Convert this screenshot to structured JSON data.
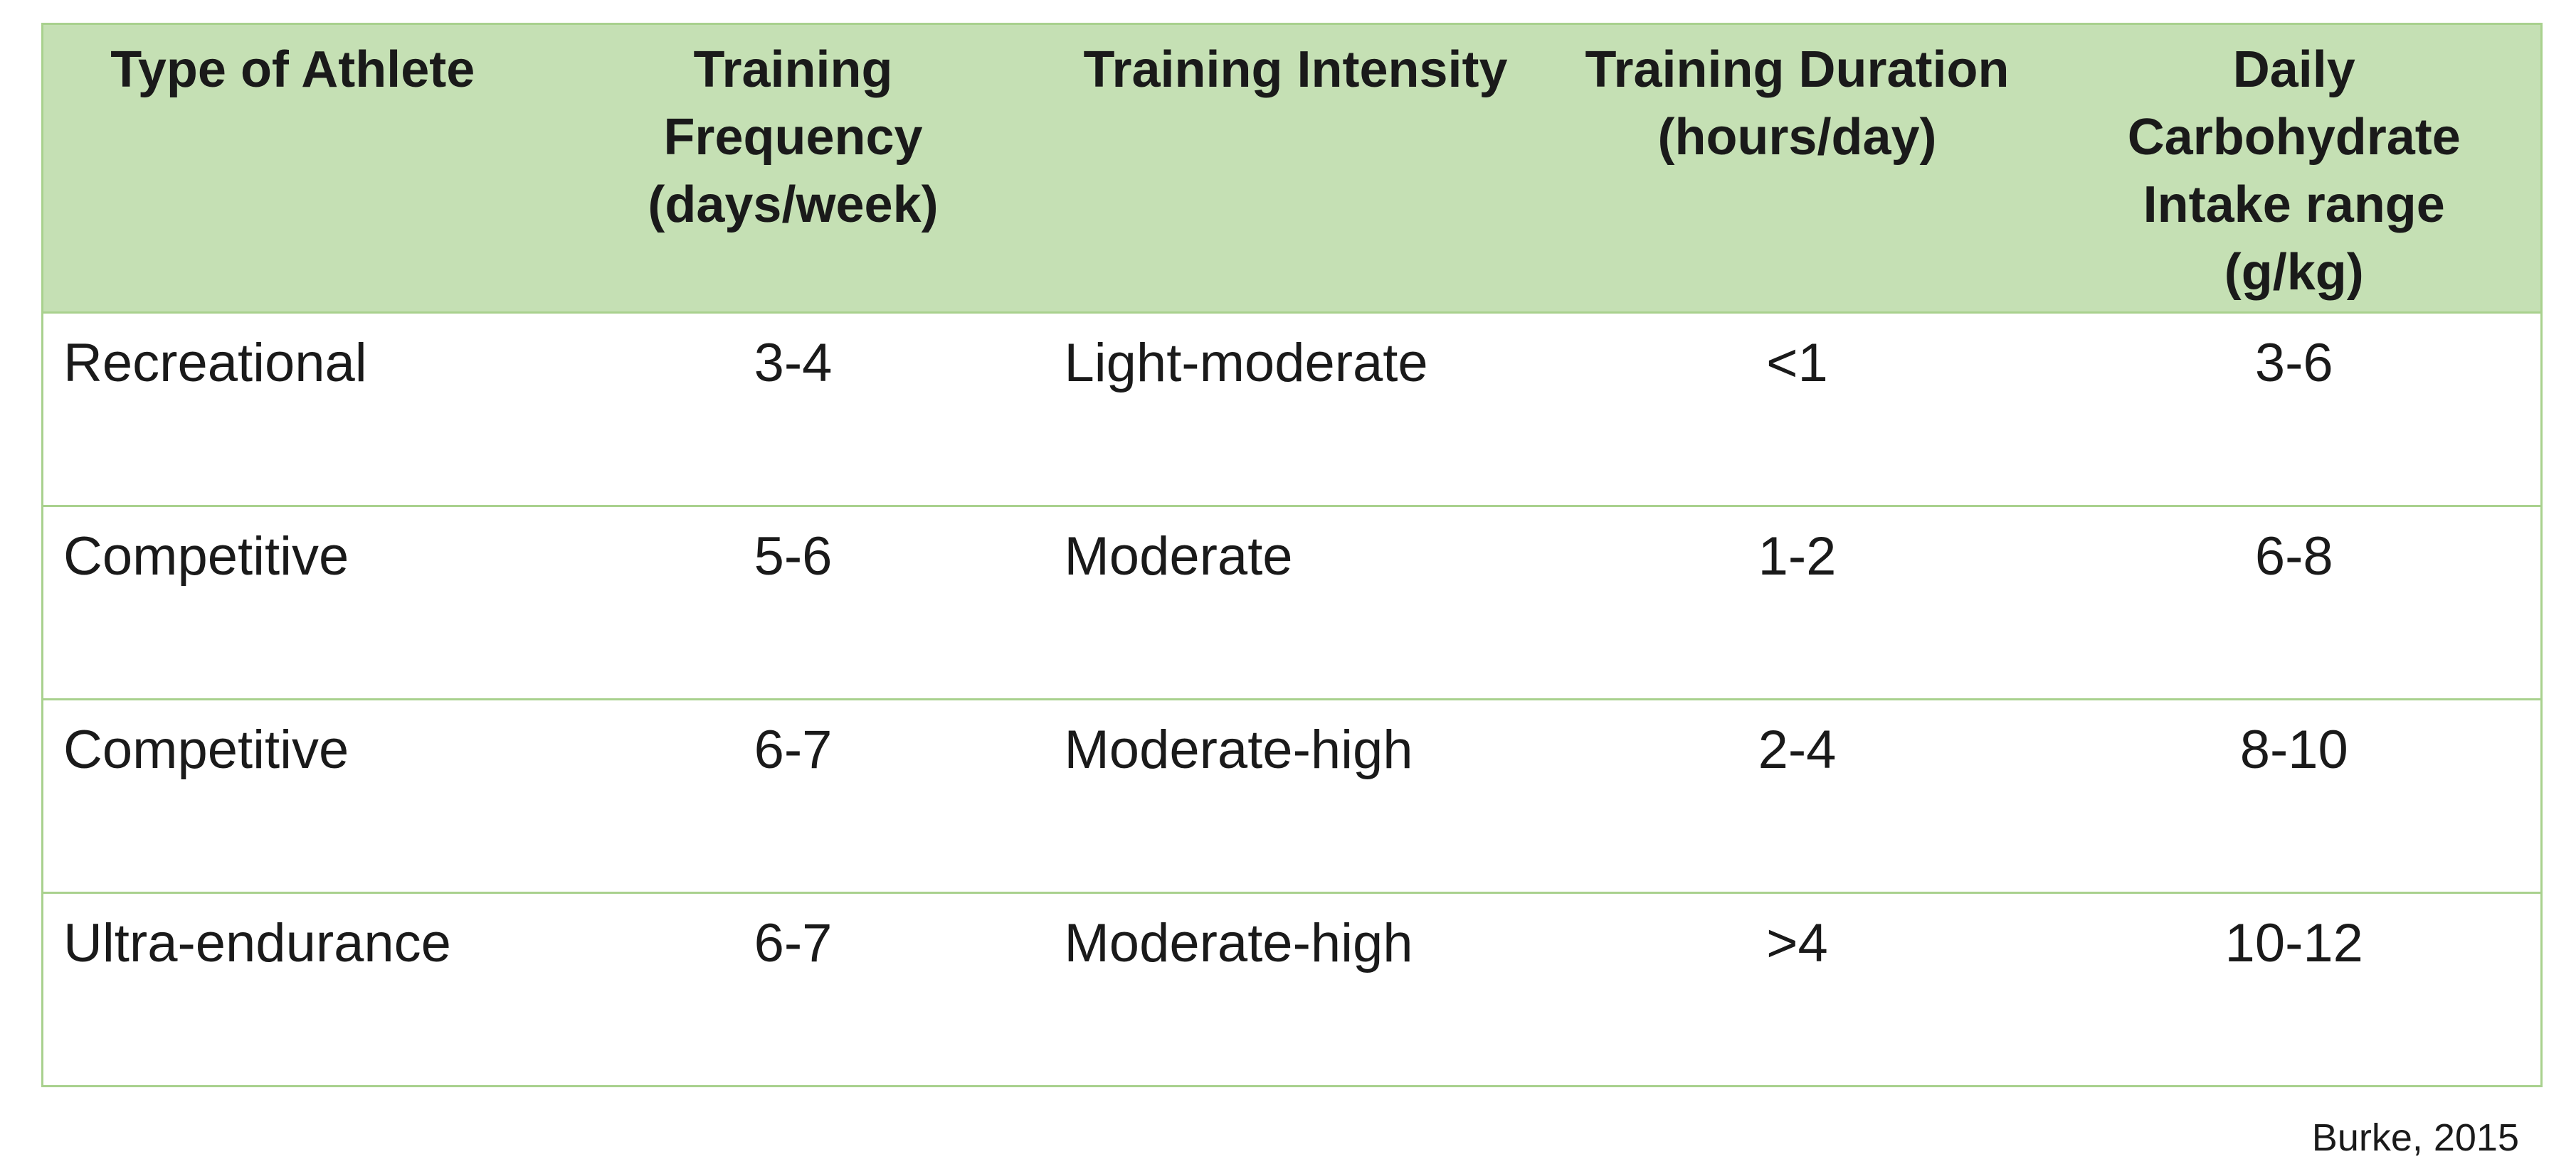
{
  "table": {
    "headers": [
      "Type of Athlete",
      "Training\nFrequency\n(days/week)",
      "Training Intensity",
      "Training Duration\n(hours/day)",
      "Daily\nCarbohydrate\nIntake range\n(g/kg)"
    ],
    "rows": [
      [
        "Recreational",
        "3-4",
        "Light-moderate",
        "<1",
        "3-6"
      ],
      [
        "Competitive",
        "5-6",
        "Moderate",
        "1-2",
        "6-8"
      ],
      [
        "Competitive",
        "6-7",
        "Moderate-high",
        "2-4",
        "8-10"
      ],
      [
        "Ultra-endurance",
        "6-7",
        "Moderate-high",
        ">4",
        "10-12"
      ]
    ],
    "colors": {
      "header_bg": "#c5e0b4",
      "border": "#a9d18e"
    }
  },
  "citation": "Burke, 2015"
}
